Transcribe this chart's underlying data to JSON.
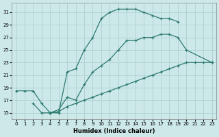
{
  "xlabel": "Humidex (Indice chaleur)",
  "bg_color": "#cce8e8",
  "grid_color": "#aacccc",
  "line_color": "#2d7a6e",
  "xlim": [
    -0.5,
    23.5
  ],
  "ylim": [
    14,
    32.5
  ],
  "xticks": [
    0,
    1,
    2,
    3,
    4,
    5,
    6,
    7,
    8,
    9,
    10,
    11,
    12,
    13,
    14,
    15,
    16,
    17,
    18,
    19,
    20,
    21,
    22,
    23
  ],
  "yticks": [
    15,
    17,
    19,
    21,
    23,
    25,
    27,
    29,
    31
  ],
  "line1": {
    "x": [
      0,
      1,
      2,
      3,
      4,
      5,
      6,
      7,
      8,
      9,
      10,
      11,
      12,
      13,
      14,
      15,
      16,
      17,
      18,
      19
    ],
    "y": [
      18.5,
      18.5,
      18.5,
      16.5,
      15.0,
      15.0,
      21.5,
      22.0,
      25.0,
      27.0,
      30.0,
      31.0,
      31.5,
      31.5,
      31.5,
      31.0,
      30.5,
      30.0,
      30.0,
      29.5
    ]
  },
  "line2": {
    "x": [
      2,
      3,
      4,
      5,
      6,
      7,
      8,
      9,
      10,
      11,
      12,
      13,
      14,
      15,
      16,
      17,
      18,
      19,
      20,
      21,
      22,
      23
    ],
    "y": [
      16.5,
      15.0,
      15.0,
      15.2,
      16.0,
      16.5,
      17.0,
      17.5,
      18.0,
      18.5,
      19.0,
      19.5,
      20.0,
      20.5,
      21.0,
      21.5,
      22.0,
      22.5,
      23.0,
      23.0,
      23.0,
      23.0
    ]
  },
  "line3": {
    "x": [
      4,
      5,
      6,
      7,
      8,
      9,
      10,
      11,
      12,
      13,
      14,
      15,
      16,
      17,
      18,
      19,
      20,
      23
    ],
    "y": [
      15.0,
      15.5,
      17.5,
      17.0,
      19.5,
      21.5,
      22.5,
      23.5,
      25.0,
      26.5,
      26.5,
      27.0,
      27.0,
      27.5,
      27.5,
      27.0,
      25.0,
      23.0
    ]
  }
}
